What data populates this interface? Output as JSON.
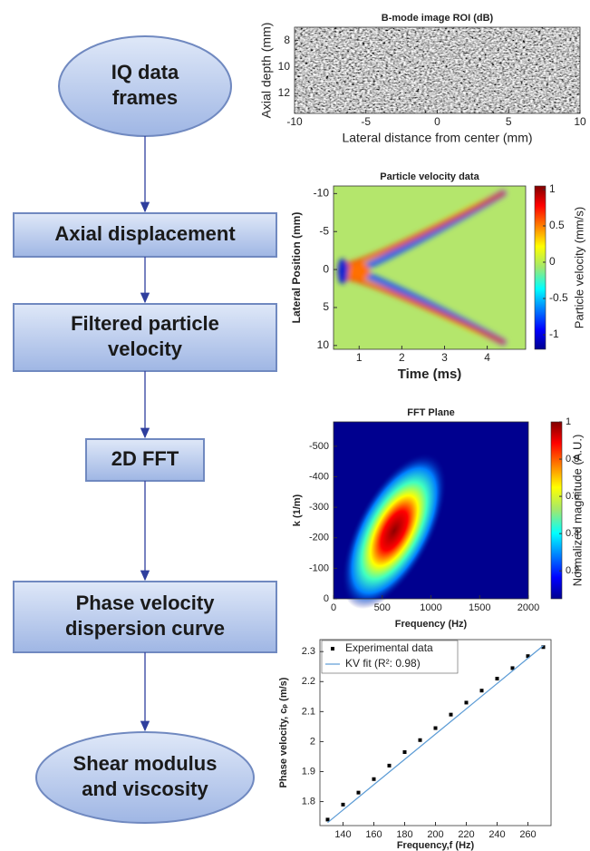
{
  "nodes": [
    {
      "shape": "ellipse",
      "lines": [
        "IQ data",
        "frames"
      ]
    },
    {
      "shape": "rect",
      "lines": [
        "Axial displacement"
      ]
    },
    {
      "shape": "rect",
      "lines": [
        "Filtered particle",
        "velocity"
      ]
    },
    {
      "shape": "rect",
      "lines": [
        "2D FFT"
      ]
    },
    {
      "shape": "rect",
      "lines": [
        "Phase velocity",
        "dispersion curve"
      ]
    },
    {
      "shape": "ellipse",
      "lines": [
        "Shear modulus",
        "and viscosity"
      ]
    }
  ],
  "panels": [
    {
      "type": "image",
      "title": "B-mode image ROI (dB)",
      "xlabel": "Lateral distance from center (mm)",
      "ylabel": "Axial depth (mm)",
      "xlim": [
        -10,
        10
      ],
      "xticks": [
        -10,
        -5,
        0,
        5,
        10
      ],
      "ylim": [
        13.5,
        7
      ],
      "yticks": [
        8,
        10,
        12
      ]
    },
    {
      "type": "heatmap",
      "title": "Particle velocity data",
      "xlabel": "Time (ms)",
      "ylabel": "Lateral Position (mm)",
      "xlim": [
        0.4,
        4.9
      ],
      "xticks": [
        1,
        2,
        3,
        4
      ],
      "ylim": [
        10.5,
        -11
      ],
      "yticks": [
        -10,
        -5,
        0,
        5,
        10
      ],
      "colorbar": {
        "label": "Particle velocity (mm/s)",
        "lim": [
          -1.2,
          1.05
        ],
        "ticks": [
          -1,
          -0.5,
          0,
          0.5,
          1
        ]
      }
    },
    {
      "type": "heatmap",
      "title": "FFT Plane",
      "xlabel": "Frequency (Hz)",
      "ylabel": "k (1/m)",
      "xlim": [
        0,
        2000
      ],
      "xticks": [
        0,
        500,
        1000,
        1500,
        2000
      ],
      "ylim": [
        0,
        -580
      ],
      "yticks": [
        0,
        -100,
        -200,
        -300,
        -400,
        -500
      ],
      "colorbar": {
        "label": "Normalized magnitude (A.U.)",
        "lim": [
          0.05,
          1
        ],
        "ticks": [
          0.2,
          0.4,
          0.6,
          0.8,
          1
        ]
      }
    },
    {
      "type": "scatter",
      "xlabel": "Frequency,f (Hz)",
      "ylabel": "Phase velocity, cₚ (m/s)",
      "xlim": [
        125,
        275
      ],
      "xticks": [
        140,
        160,
        180,
        200,
        220,
        240,
        260
      ],
      "ylim": [
        1.72,
        2.34
      ],
      "yticks": [
        1.8,
        1.9,
        2,
        2.1,
        2.2,
        2.3
      ],
      "series": [
        {
          "name": "Experimental data",
          "kind": "points",
          "color": "#000000",
          "x": [
            130,
            140,
            150,
            160,
            170,
            180,
            190,
            200,
            210,
            220,
            230,
            240,
            250,
            260,
            270
          ],
          "values": [
            1.74,
            1.79,
            1.83,
            1.875,
            1.92,
            1.965,
            2.005,
            2.045,
            2.09,
            2.13,
            2.17,
            2.21,
            2.245,
            2.285,
            2.315
          ]
        },
        {
          "name": "KV fit (R²: 0.98)",
          "kind": "line",
          "color": "#5b9bd5",
          "x": [
            130,
            270
          ],
          "values": [
            1.73,
            2.32
          ]
        }
      ]
    }
  ]
}
